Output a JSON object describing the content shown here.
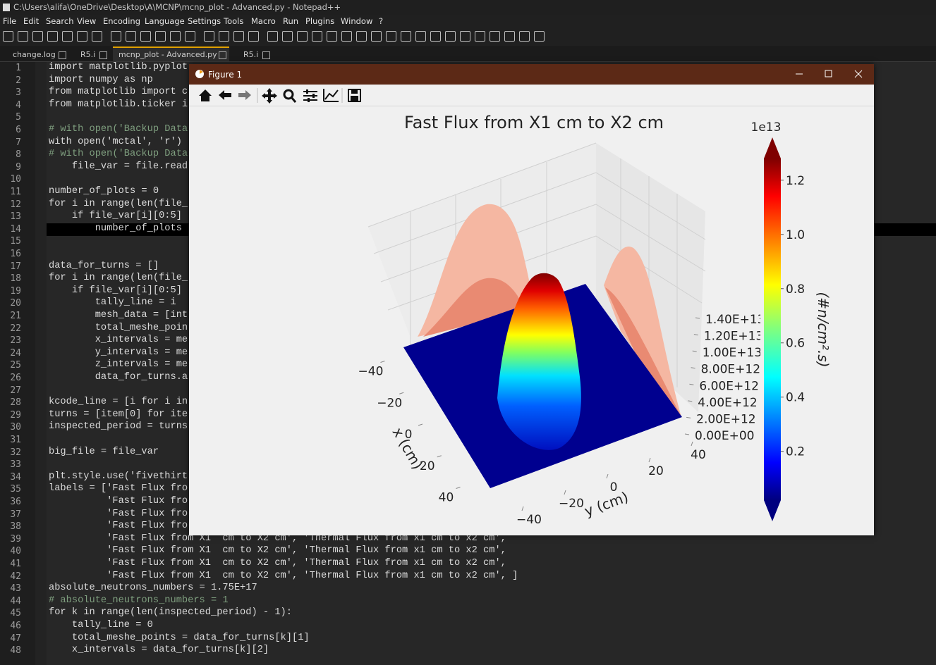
{
  "window": {
    "title": "C:\\Users\\alifa\\OneDrive\\Desktop\\A\\MCNP\\mcnp_plot - Advanced.py - Notepad++",
    "menu": [
      "File",
      "Edit",
      "Search",
      "View",
      "Encoding",
      "Language",
      "Settings",
      "Tools",
      "Macro",
      "Run",
      "Plugins",
      "Window",
      "?"
    ],
    "tabs": [
      "change.log",
      "R5.i",
      "mcnp_plot - Advanced.py",
      "R5.i"
    ]
  },
  "editor": {
    "lines": [
      {
        "number": 1,
        "code": "import matplotlib.pyplot"
      },
      {
        "number": 2,
        "code": "import numpy as np"
      },
      {
        "number": 3,
        "code": "from matplotlib import c"
      },
      {
        "number": 4,
        "code": "from matplotlib.ticker i"
      },
      {
        "number": 5
      },
      {
        "number": 6,
        "code": "# with open('Backup Data",
        "color": "#7f9f7f"
      },
      {
        "number": 7,
        "code": "with open('mctal', 'r')"
      },
      {
        "number": 8,
        "code": "# with open('Backup Data",
        "color": "#7f9f7f"
      },
      {
        "number": 9,
        "code": "    file_var = file.read"
      },
      {
        "number": 10
      },
      {
        "number": 11,
        "code": "number_of_plots = 0"
      },
      {
        "number": 12,
        "code": "for i in range(len(file_"
      },
      {
        "number": 13,
        "code": "    if file_var[i][0:5]"
      },
      {
        "number": 14,
        "code": "        number_of_plots"
      },
      {
        "number": 15
      },
      {
        "number": 16
      },
      {
        "number": 17,
        "code": "data_for_turns = []"
      },
      {
        "number": 18,
        "code": "for i in range(len(file_"
      },
      {
        "number": 19,
        "code": "    if file_var[i][0:5]"
      },
      {
        "number": 20,
        "code": "        tally_line = i"
      },
      {
        "number": 21,
        "code": "        mesh_data = [int"
      },
      {
        "number": 22,
        "code": "        total_meshe_poin"
      },
      {
        "number": 23,
        "code": "        x_intervals = me"
      },
      {
        "number": 24,
        "code": "        y_intervals = me"
      },
      {
        "number": 25,
        "code": "        z_intervals = me"
      },
      {
        "number": 26,
        "code": "        data_for_turns.a"
      },
      {
        "number": 27
      },
      {
        "number": 28,
        "code": "kcode_line = [i for i in"
      },
      {
        "number": 29,
        "code": "turns = [item[0] for ite"
      },
      {
        "number": 30,
        "code": "inspected_period = turns"
      },
      {
        "number": 31
      },
      {
        "number": 32,
        "code": "big_file = file_var"
      },
      {
        "number": 33
      },
      {
        "number": 34,
        "code": "plt.style.use('fivethirt"
      },
      {
        "number": 35,
        "code": "labels = ['Fast Flux fro"
      },
      {
        "number": 36,
        "code": "          'Fast Flux fro"
      },
      {
        "number": 37,
        "code": "          'Fast Flux fro"
      },
      {
        "number": 38,
        "code": "          'Fast Flux fro"
      },
      {
        "number": 39,
        "code": "          'Fast Flux from X1  cm to X2 cm', 'Thermal Flux from x1 cm to x2 cm',"
      },
      {
        "number": 40,
        "code": "          'Fast Flux from X1  cm to X2 cm', 'Thermal Flux from x1 cm to x2 cm',"
      },
      {
        "number": 41,
        "code": "          'Fast Flux from X1  cm to X2 cm', 'Thermal Flux from x1 cm to x2 cm',"
      },
      {
        "number": 42,
        "code": "          'Fast Flux from X1  cm to X2 cm', 'Thermal Flux from x1 cm to x2 cm', ]"
      },
      {
        "number": 43,
        "code": "absolute_neutrons_numbers = 1.75E+17"
      },
      {
        "number": 44,
        "code": "# absolute_neutrons_numbers = 1",
        "color": "#7f9f7f"
      },
      {
        "number": 45,
        "code": "for k in range(len(inspected_period) - 1):"
      },
      {
        "number": 46,
        "code": "    tally_line = 0"
      },
      {
        "number": 47,
        "code": "    total_meshe_points = data_for_turns[k][1]"
      },
      {
        "number": 48,
        "code": "    x_intervals = data_for_turns[k][2]"
      }
    ]
  },
  "figure": {
    "title": "Figure 1",
    "chart_data": {
      "type": "surface3d",
      "title": "Fast Flux from X1 cm to X2 cm",
      "xlabel": "x (cm)",
      "ylabel": "y (cm)",
      "xticks": [
        {
          "value": -40,
          "label": "−40"
        },
        {
          "value": -20,
          "label": "−20"
        },
        0,
        20,
        40
      ],
      "yticks": [
        {
          "value": -40,
          "label": "−40"
        },
        {
          "value": -20,
          "label": "−20"
        },
        0,
        20,
        40
      ],
      "zticks": [
        {
          "value": 0,
          "label": "0.00E+00"
        },
        {
          "value": 2000000000000,
          "label": "2.00E+12"
        },
        {
          "value": 4000000000000,
          "label": "4.00E+12"
        },
        {
          "value": 6000000000000,
          "label": "6.00E+12"
        },
        {
          "value": 8000000000000,
          "label": "8.00E+12"
        },
        {
          "value": 10000000000000,
          "label": "1.00E+13"
        },
        {
          "value": 12000000000000,
          "label": "1.20E+13"
        },
        {
          "value": 14000000000000,
          "label": "1.40E+13"
        }
      ],
      "colorbar": {
        "label": "(#n/cm².s)",
        "offset_label": "1e13",
        "colormap": "jet",
        "clim": [
          0.02,
          1.28
        ],
        "ticks": [
          0.2,
          0.4,
          0.6,
          0.8,
          {
            "value": 1,
            "label": "1.0"
          },
          1.2
        ]
      }
    }
  }
}
